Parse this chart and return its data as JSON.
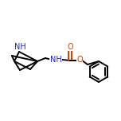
{
  "bg_color": "#ffffff",
  "line_color": "#000000",
  "n_color": "#2222cc",
  "o_color": "#cc4400",
  "bond_lw": 1.4,
  "font_size": 7.0,
  "fig_size": [
    1.52,
    1.52
  ],
  "dpi": 100,
  "xlim": [
    0,
    152
  ],
  "ylim": [
    0,
    152
  ]
}
